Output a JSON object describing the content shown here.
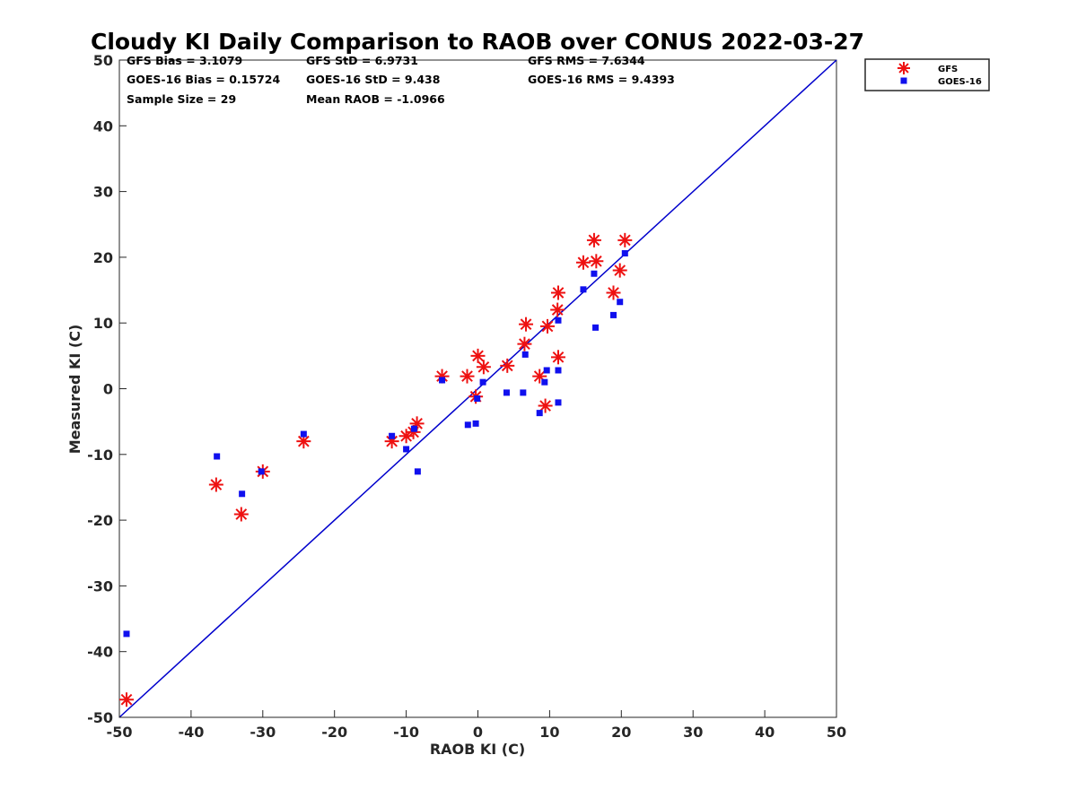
{
  "chart_data": {
    "type": "scatter",
    "title": "Cloudy KI Daily Comparison to RAOB over CONUS 2022-03-27",
    "xlabel": "RAOB KI (C)",
    "ylabel": "Measured KI (C)",
    "xlim": [
      -50,
      50
    ],
    "ylim": [
      -50,
      50
    ],
    "xticks": [
      -50,
      -40,
      -30,
      -20,
      -10,
      0,
      10,
      20,
      30,
      40,
      50
    ],
    "yticks": [
      -50,
      -40,
      -30,
      -20,
      -10,
      0,
      10,
      20,
      30,
      40,
      50
    ],
    "grid": false,
    "legend_position": "outside top-right",
    "reference_line": {
      "label": "",
      "color": "#0000cc",
      "from": [
        -50,
        -50
      ],
      "to": [
        50,
        50
      ]
    },
    "stats": [
      [
        "GFS Bias = 3.1079",
        "GFS StD = 6.9731",
        "GFS RMS = 7.6344"
      ],
      [
        "GOES-16 Bias = 0.15724",
        "GOES-16 StD = 9.438",
        "GOES-16 RMS = 9.4393"
      ],
      [
        "Sample Size = 29",
        "Mean RAOB = -1.0966",
        ""
      ]
    ],
    "series": [
      {
        "name": "GFS",
        "marker": "asterisk",
        "color": "#ee1111",
        "points": [
          [
            -49,
            -47.3
          ],
          [
            -36.5,
            -14.6
          ],
          [
            -33,
            -19.1
          ],
          [
            -30,
            -12.6
          ],
          [
            -24.3,
            -8
          ],
          [
            -12,
            -8
          ],
          [
            -10,
            -7.2
          ],
          [
            -9,
            -6.6
          ],
          [
            -8.5,
            -5.3
          ],
          [
            -5,
            1.9
          ],
          [
            -1.5,
            1.9
          ],
          [
            -0.3,
            -1.2
          ],
          [
            0,
            5
          ],
          [
            0.8,
            3.3
          ],
          [
            4.1,
            3.5
          ],
          [
            6.5,
            6.8
          ],
          [
            6.7,
            9.8
          ],
          [
            8.6,
            1.9
          ],
          [
            9.4,
            -2.6
          ],
          [
            9.7,
            9.5
          ],
          [
            11.1,
            12
          ],
          [
            11.2,
            14.6
          ],
          [
            11.2,
            4.8
          ],
          [
            14.7,
            19.2
          ],
          [
            16.2,
            22.6
          ],
          [
            16.5,
            19.4
          ],
          [
            18.9,
            14.6
          ],
          [
            19.8,
            18
          ],
          [
            20.5,
            22.6
          ]
        ]
      },
      {
        "name": "GOES-16",
        "marker": "square",
        "color": "#1010ee",
        "points": [
          [
            -49,
            -37.3
          ],
          [
            -36.4,
            -10.3
          ],
          [
            -32.9,
            -16
          ],
          [
            -30.2,
            -12.6
          ],
          [
            -24.3,
            -6.9
          ],
          [
            -12,
            -7.2
          ],
          [
            -10,
            -9.2
          ],
          [
            -8.9,
            -6.1
          ],
          [
            -8.4,
            -12.6
          ],
          [
            -5,
            1.3
          ],
          [
            -1.4,
            -5.5
          ],
          [
            -0.3,
            -5.3
          ],
          [
            -0.1,
            -1.5
          ],
          [
            0.7,
            1
          ],
          [
            4,
            -0.6
          ],
          [
            6.3,
            -0.6
          ],
          [
            6.6,
            5.2
          ],
          [
            8.6,
            -3.7
          ],
          [
            9.3,
            1
          ],
          [
            9.6,
            2.8
          ],
          [
            11.2,
            2.8
          ],
          [
            11.2,
            -2.1
          ],
          [
            11.2,
            10.4
          ],
          [
            14.7,
            15.1
          ],
          [
            16.2,
            17.5
          ],
          [
            16.4,
            9.3
          ],
          [
            18.9,
            11.2
          ],
          [
            19.8,
            13.2
          ],
          [
            20.5,
            20.6
          ]
        ]
      }
    ]
  }
}
